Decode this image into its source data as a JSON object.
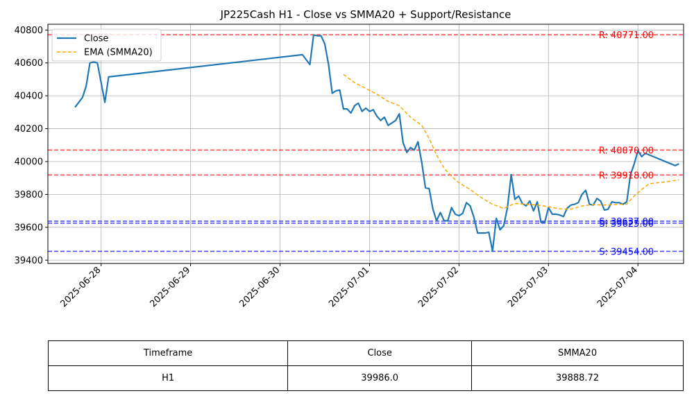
{
  "chart_data": {
    "type": "line",
    "title": "JP225Cash H1 - Close vs SMMA20 + Support/Resistance",
    "xlabel": "",
    "ylabel": "",
    "x_ticks": [
      "2025-06-28",
      "2025-06-29",
      "2025-06-30",
      "2025-07-01",
      "2025-07-02",
      "2025-07-03",
      "2025-07-04"
    ],
    "y_ticks": [
      "39400",
      "39600",
      "39800",
      "40000",
      "40200",
      "40400",
      "40600",
      "40800"
    ],
    "ylim": [
      39380,
      40835
    ],
    "xlim": [
      "2025-06-27T09:43",
      "2025-07-04T12:15"
    ],
    "grid": true,
    "legend_position": "top-left",
    "series": [
      {
        "name": "Close",
        "color": "#1f77b4",
        "style": "solid",
        "points": [
          [
            "2025-06-27T17:00",
            40330
          ],
          [
            "2025-06-27T19:00",
            40390
          ],
          [
            "2025-06-27T20:00",
            40460
          ],
          [
            "2025-06-27T21:00",
            40600
          ],
          [
            "2025-06-27T22:00",
            40605
          ],
          [
            "2025-06-27T23:00",
            40600
          ],
          [
            "2025-06-28T00:00",
            40480
          ],
          [
            "2025-06-28T01:00",
            40360
          ],
          [
            "2025-06-28T02:00",
            40515
          ],
          [
            "2025-06-30T06:00",
            40650
          ],
          [
            "2025-06-30T08:00",
            40590
          ],
          [
            "2025-06-30T09:00",
            40770
          ],
          [
            "2025-06-30T10:00",
            40765
          ],
          [
            "2025-06-30T11:00",
            40765
          ],
          [
            "2025-06-30T12:00",
            40715
          ],
          [
            "2025-06-30T13:00",
            40590
          ],
          [
            "2025-06-30T14:00",
            40415
          ],
          [
            "2025-06-30T15:00",
            40430
          ],
          [
            "2025-06-30T16:00",
            40435
          ],
          [
            "2025-06-30T17:00",
            40320
          ],
          [
            "2025-06-30T18:00",
            40320
          ],
          [
            "2025-06-30T19:00",
            40295
          ],
          [
            "2025-06-30T20:00",
            40340
          ],
          [
            "2025-06-30T21:00",
            40355
          ],
          [
            "2025-06-30T22:00",
            40305
          ],
          [
            "2025-06-30T23:00",
            40325
          ],
          [
            "2025-07-01T00:00",
            40305
          ],
          [
            "2025-07-01T01:00",
            40315
          ],
          [
            "2025-07-01T02:00",
            40275
          ],
          [
            "2025-07-01T03:00",
            40250
          ],
          [
            "2025-07-01T04:00",
            40270
          ],
          [
            "2025-07-01T05:00",
            40220
          ],
          [
            "2025-07-01T06:00",
            40235
          ],
          [
            "2025-07-01T07:00",
            40250
          ],
          [
            "2025-07-01T08:00",
            40290
          ],
          [
            "2025-07-01T09:00",
            40115
          ],
          [
            "2025-07-01T10:00",
            40055
          ],
          [
            "2025-07-01T11:00",
            40085
          ],
          [
            "2025-07-01T12:00",
            40070
          ],
          [
            "2025-07-01T13:00",
            40120
          ],
          [
            "2025-07-01T14:00",
            39995
          ],
          [
            "2025-07-01T15:00",
            39840
          ],
          [
            "2025-07-01T16:00",
            39835
          ],
          [
            "2025-07-01T17:00",
            39710
          ],
          [
            "2025-07-01T18:00",
            39640
          ],
          [
            "2025-07-01T19:00",
            39690
          ],
          [
            "2025-07-01T20:00",
            39640
          ],
          [
            "2025-07-01T21:00",
            39640
          ],
          [
            "2025-07-01T22:00",
            39720
          ],
          [
            "2025-07-01T23:00",
            39680
          ],
          [
            "2025-07-02T00:00",
            39670
          ],
          [
            "2025-07-02T01:00",
            39685
          ],
          [
            "2025-07-02T02:00",
            39750
          ],
          [
            "2025-07-02T03:00",
            39730
          ],
          [
            "2025-07-02T04:00",
            39660
          ],
          [
            "2025-07-02T05:00",
            39565
          ],
          [
            "2025-07-02T06:00",
            39565
          ],
          [
            "2025-07-02T07:00",
            39565
          ],
          [
            "2025-07-02T08:00",
            39570
          ],
          [
            "2025-07-02T09:00",
            39455
          ],
          [
            "2025-07-02T10:00",
            39655
          ],
          [
            "2025-07-02T11:00",
            39585
          ],
          [
            "2025-07-02T12:00",
            39610
          ],
          [
            "2025-07-02T13:00",
            39720
          ],
          [
            "2025-07-02T14:00",
            39920
          ],
          [
            "2025-07-02T15:00",
            39770
          ],
          [
            "2025-07-02T16:00",
            39790
          ],
          [
            "2025-07-02T17:00",
            39745
          ],
          [
            "2025-07-02T18:00",
            39730
          ],
          [
            "2025-07-02T19:00",
            39760
          ],
          [
            "2025-07-02T20:00",
            39700
          ],
          [
            "2025-07-02T21:00",
            39755
          ],
          [
            "2025-07-02T22:00",
            39630
          ],
          [
            "2025-07-02T23:00",
            39630
          ],
          [
            "2025-07-03T00:00",
            39720
          ],
          [
            "2025-07-03T01:00",
            39680
          ],
          [
            "2025-07-03T02:00",
            39680
          ],
          [
            "2025-07-03T03:00",
            39675
          ],
          [
            "2025-07-03T04:00",
            39665
          ],
          [
            "2025-07-03T05:00",
            39715
          ],
          [
            "2025-07-03T06:00",
            39735
          ],
          [
            "2025-07-03T07:00",
            39740
          ],
          [
            "2025-07-03T08:00",
            39750
          ],
          [
            "2025-07-03T09:00",
            39800
          ],
          [
            "2025-07-03T10:00",
            39825
          ],
          [
            "2025-07-03T11:00",
            39740
          ],
          [
            "2025-07-03T12:00",
            39735
          ],
          [
            "2025-07-03T13:00",
            39775
          ],
          [
            "2025-07-03T14:00",
            39760
          ],
          [
            "2025-07-03T15:00",
            39705
          ],
          [
            "2025-07-03T16:00",
            39710
          ],
          [
            "2025-07-03T17:00",
            39755
          ],
          [
            "2025-07-03T18:00",
            39750
          ],
          [
            "2025-07-03T19:00",
            39750
          ],
          [
            "2025-07-03T20:00",
            39740
          ],
          [
            "2025-07-03T21:00",
            39755
          ],
          [
            "2025-07-03T22:00",
            39920
          ],
          [
            "2025-07-03T23:00",
            39985
          ],
          [
            "2025-07-04T00:00",
            40065
          ],
          [
            "2025-07-04T01:00",
            40030
          ],
          [
            "2025-07-04T02:00",
            40050
          ],
          [
            "2025-07-04T10:00",
            39975
          ],
          [
            "2025-07-04T11:00",
            39986
          ]
        ]
      },
      {
        "name": "EMA (SMMA20)",
        "color": "#ffa500",
        "style": "dashed",
        "points": [
          [
            "2025-06-30T17:00",
            40530
          ],
          [
            "2025-06-30T20:00",
            40480
          ],
          [
            "2025-06-30T23:00",
            40445
          ],
          [
            "2025-07-01T02:00",
            40410
          ],
          [
            "2025-07-01T05:00",
            40365
          ],
          [
            "2025-07-01T08:00",
            40340
          ],
          [
            "2025-07-01T11:00",
            40270
          ],
          [
            "2025-07-01T14:00",
            40220
          ],
          [
            "2025-07-01T16:00",
            40140
          ],
          [
            "2025-07-01T18:00",
            40040
          ],
          [
            "2025-07-01T20:00",
            39960
          ],
          [
            "2025-07-01T22:00",
            39910
          ],
          [
            "2025-07-02T00:00",
            39870
          ],
          [
            "2025-07-02T03:00",
            39830
          ],
          [
            "2025-07-02T06:00",
            39780
          ],
          [
            "2025-07-02T09:00",
            39740
          ],
          [
            "2025-07-02T12:00",
            39715
          ],
          [
            "2025-07-02T15:00",
            39745
          ],
          [
            "2025-07-02T18:00",
            39740
          ],
          [
            "2025-07-02T21:00",
            39735
          ],
          [
            "2025-07-03T00:00",
            39725
          ],
          [
            "2025-07-03T03:00",
            39712
          ],
          [
            "2025-07-03T06:00",
            39710
          ],
          [
            "2025-07-03T09:00",
            39730
          ],
          [
            "2025-07-03T12:00",
            39738
          ],
          [
            "2025-07-03T15:00",
            39735
          ],
          [
            "2025-07-03T18:00",
            39738
          ],
          [
            "2025-07-03T21:00",
            39742
          ],
          [
            "2025-07-03T23:00",
            39790
          ],
          [
            "2025-07-04T01:00",
            39830
          ],
          [
            "2025-07-04T03:00",
            39865
          ],
          [
            "2025-07-04T07:00",
            39875
          ],
          [
            "2025-07-04T11:00",
            39888.72
          ]
        ]
      }
    ],
    "levels": [
      {
        "kind": "resistance",
        "value": 40771.0,
        "label": "R: 40771.00",
        "color": "#ff0000"
      },
      {
        "kind": "resistance",
        "value": 40070.0,
        "label": "R: 40070.00",
        "color": "#ff0000"
      },
      {
        "kind": "resistance",
        "value": 39918.0,
        "label": "R: 39918.00",
        "color": "#ff0000"
      },
      {
        "kind": "support",
        "value": 39637.0,
        "label": "S: 39637.00",
        "color": "#0000ff"
      },
      {
        "kind": "support",
        "value": 39625.0,
        "label": "S: 39625.00",
        "color": "#0000ff"
      },
      {
        "kind": "support",
        "value": 39454.0,
        "label": "S: 39454.00",
        "color": "#0000ff"
      }
    ]
  },
  "table": {
    "headers": [
      "Timeframe",
      "Close",
      "SMMA20"
    ],
    "row": [
      "H1",
      "39986.0",
      "39888.72"
    ]
  }
}
